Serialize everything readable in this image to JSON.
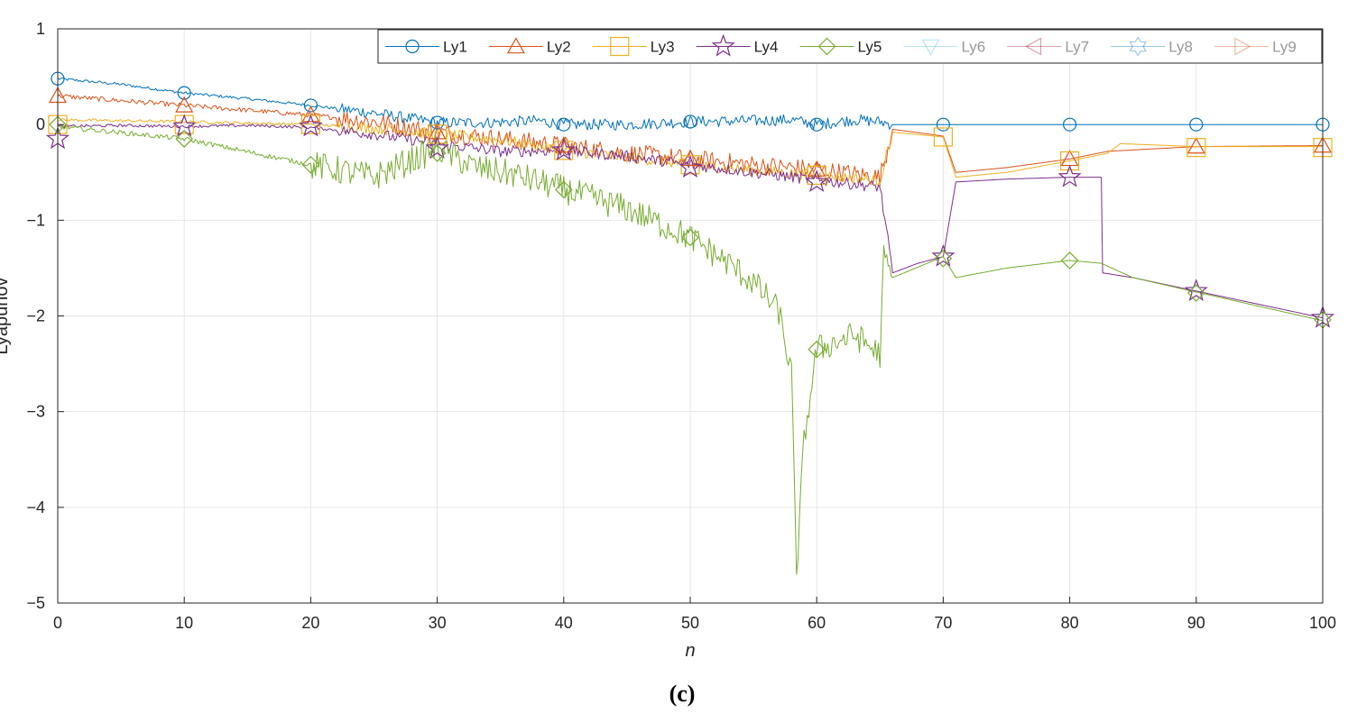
{
  "caption": "(c)",
  "chart_data": {
    "type": "line",
    "xlabel": "n",
    "ylabel": "Lyapunov",
    "xlim": [
      0,
      100
    ],
    "ylim": [
      -5,
      1
    ],
    "xticks": [
      "0",
      "10",
      "20",
      "30",
      "40",
      "50",
      "60",
      "70",
      "80",
      "90",
      "100"
    ],
    "yticks": [
      "1",
      "0",
      "−1",
      "−2",
      "−3",
      "−4",
      "−5"
    ],
    "grid": true,
    "legend_position": "top-right",
    "series": [
      {
        "name": "Ly1",
        "color": "#0072BD",
        "marker": "circle",
        "noise": 0.03,
        "points": [
          [
            0,
            0.48
          ],
          [
            5,
            0.42
          ],
          [
            10,
            0.33
          ],
          [
            15,
            0.27
          ],
          [
            20,
            0.2
          ],
          [
            25,
            0.12
          ],
          [
            28,
            0.06
          ],
          [
            30,
            0.02
          ],
          [
            34,
            0.02
          ],
          [
            38,
            0.04
          ],
          [
            40,
            0.0
          ],
          [
            45,
            0.0
          ],
          [
            50,
            0.03
          ],
          [
            55,
            0.04
          ],
          [
            58,
            0.05
          ],
          [
            60,
            0.0
          ],
          [
            63,
            0.05
          ],
          [
            65,
            0.03
          ],
          [
            66,
            0.0
          ],
          [
            100,
            0.0
          ]
        ],
        "markers": [
          [
            0,
            0.48
          ],
          [
            10,
            0.33
          ],
          [
            20,
            0.2
          ],
          [
            30,
            0.02
          ],
          [
            40,
            0.0
          ],
          [
            50,
            0.03
          ],
          [
            60,
            0.0
          ],
          [
            70,
            0.0
          ],
          [
            80,
            0.0
          ],
          [
            90,
            0.0
          ],
          [
            100,
            0.0
          ]
        ]
      },
      {
        "name": "Ly2",
        "color": "#D95319",
        "marker": "triangle-up",
        "noise": 0.05,
        "points": [
          [
            0,
            0.3
          ],
          [
            5,
            0.25
          ],
          [
            10,
            0.2
          ],
          [
            15,
            0.15
          ],
          [
            20,
            0.1
          ],
          [
            25,
            0.03
          ],
          [
            30,
            -0.08
          ],
          [
            35,
            -0.15
          ],
          [
            40,
            -0.22
          ],
          [
            45,
            -0.3
          ],
          [
            50,
            -0.36
          ],
          [
            55,
            -0.42
          ],
          [
            60,
            -0.47
          ],
          [
            65,
            -0.55
          ],
          [
            66,
            -0.05
          ],
          [
            70,
            -0.12
          ],
          [
            71,
            -0.5
          ],
          [
            75,
            -0.45
          ],
          [
            80,
            -0.36
          ],
          [
            83,
            -0.28
          ],
          [
            90,
            -0.23
          ],
          [
            100,
            -0.22
          ]
        ],
        "markers": [
          [
            0,
            0.3
          ],
          [
            10,
            0.2
          ],
          [
            20,
            0.1
          ],
          [
            30,
            -0.08
          ],
          [
            40,
            -0.22
          ],
          [
            50,
            -0.36
          ],
          [
            60,
            -0.47
          ],
          [
            80,
            -0.36
          ],
          [
            90,
            -0.23
          ],
          [
            100,
            -0.22
          ]
        ]
      },
      {
        "name": "Ly3",
        "color": "#EDB120",
        "marker": "square",
        "noise": 0.03,
        "points": [
          [
            0,
            0.05
          ],
          [
            10,
            0.03
          ],
          [
            20,
            0.0
          ],
          [
            25,
            -0.04
          ],
          [
            30,
            -0.1
          ],
          [
            35,
            -0.16
          ],
          [
            40,
            -0.27
          ],
          [
            45,
            -0.34
          ],
          [
            50,
            -0.42
          ],
          [
            55,
            -0.48
          ],
          [
            60,
            -0.53
          ],
          [
            65,
            -0.58
          ],
          [
            66,
            -0.08
          ],
          [
            70,
            -0.13
          ],
          [
            71,
            -0.55
          ],
          [
            75,
            -0.5
          ],
          [
            80,
            -0.38
          ],
          [
            83,
            -0.3
          ],
          [
            84,
            -0.2
          ],
          [
            90,
            -0.23
          ],
          [
            100,
            -0.23
          ]
        ],
        "markers": [
          [
            0,
            0.0
          ],
          [
            10,
            0.0
          ],
          [
            20,
            0.0
          ],
          [
            30,
            -0.1
          ],
          [
            40,
            -0.27
          ],
          [
            50,
            -0.42
          ],
          [
            60,
            -0.53
          ],
          [
            70,
            -0.13
          ],
          [
            80,
            -0.38
          ],
          [
            90,
            -0.24
          ],
          [
            100,
            -0.24
          ]
        ]
      },
      {
        "name": "Ly4",
        "color": "#7E2F8E",
        "marker": "star",
        "noise": 0.03,
        "points": [
          [
            0,
            -0.02
          ],
          [
            5,
            -0.01
          ],
          [
            10,
            -0.02
          ],
          [
            15,
            -0.01
          ],
          [
            20,
            -0.03
          ],
          [
            25,
            -0.1
          ],
          [
            30,
            -0.2
          ],
          [
            35,
            -0.28
          ],
          [
            40,
            -0.27
          ],
          [
            45,
            -0.33
          ],
          [
            50,
            -0.42
          ],
          [
            55,
            -0.5
          ],
          [
            60,
            -0.58
          ],
          [
            65,
            -0.65
          ],
          [
            66,
            -1.55
          ],
          [
            68,
            -1.45
          ],
          [
            70,
            -1.38
          ],
          [
            71,
            -0.6
          ],
          [
            75,
            -0.57
          ],
          [
            80,
            -0.55
          ],
          [
            82.5,
            -0.55
          ],
          [
            82.6,
            -1.55
          ],
          [
            85,
            -1.6
          ],
          [
            90,
            -1.74
          ],
          [
            100,
            -2.02
          ]
        ],
        "markers": [
          [
            0,
            -0.15
          ],
          [
            10,
            -0.02
          ],
          [
            20,
            -0.02
          ],
          [
            30,
            -0.25
          ],
          [
            40,
            -0.27
          ],
          [
            50,
            -0.45
          ],
          [
            60,
            -0.6
          ],
          [
            70,
            -1.38
          ],
          [
            80,
            -0.55
          ],
          [
            90,
            -1.74
          ],
          [
            100,
            -2.02
          ]
        ]
      },
      {
        "name": "Ly5",
        "color": "#77AC30",
        "marker": "diamond",
        "noise": 0.05,
        "points": [
          [
            0,
            -0.02
          ],
          [
            10,
            -0.15
          ],
          [
            20,
            -0.42
          ],
          [
            25,
            -0.55
          ],
          [
            30,
            -0.25
          ],
          [
            33,
            -0.45
          ],
          [
            36,
            -0.52
          ],
          [
            40,
            -0.68
          ],
          [
            45,
            -0.88
          ],
          [
            50,
            -1.18
          ],
          [
            53,
            -1.45
          ],
          [
            55,
            -1.65
          ],
          [
            57,
            -1.95
          ],
          [
            58,
            -2.6
          ],
          [
            58.4,
            -4.7
          ],
          [
            59,
            -3.3
          ],
          [
            60,
            -2.35
          ],
          [
            63,
            -2.2
          ],
          [
            65,
            -2.4
          ],
          [
            65.3,
            -1.4
          ],
          [
            66,
            -1.6
          ],
          [
            70,
            -1.38
          ],
          [
            71,
            -1.6
          ],
          [
            75,
            -1.5
          ],
          [
            80,
            -1.42
          ],
          [
            82.5,
            -1.45
          ],
          [
            85,
            -1.6
          ],
          [
            90,
            -1.75
          ],
          [
            100,
            -2.05
          ]
        ],
        "markers": [
          [
            0,
            0.0
          ],
          [
            10,
            -0.15
          ],
          [
            20,
            -0.42
          ],
          [
            30,
            -0.3
          ],
          [
            40,
            -0.68
          ],
          [
            50,
            -1.18
          ],
          [
            60,
            -2.35
          ],
          [
            70,
            -1.4
          ],
          [
            80,
            -1.42
          ],
          [
            90,
            -1.76
          ],
          [
            100,
            -2.04
          ]
        ]
      },
      {
        "name": "Ly6",
        "color": "#4DBEEE",
        "marker": "triangle-down",
        "faded": true,
        "points": [],
        "markers": []
      },
      {
        "name": "Ly7",
        "color": "#A2142F",
        "marker": "triangle-left",
        "faded": true,
        "points": [],
        "markers": []
      },
      {
        "name": "Ly8",
        "color": "#0072BD",
        "marker": "hexagram",
        "faded": true,
        "points": [],
        "markers": []
      },
      {
        "name": "Ly9",
        "color": "#D95319",
        "marker": "triangle-right",
        "faded": true,
        "points": [],
        "markers": []
      }
    ]
  }
}
